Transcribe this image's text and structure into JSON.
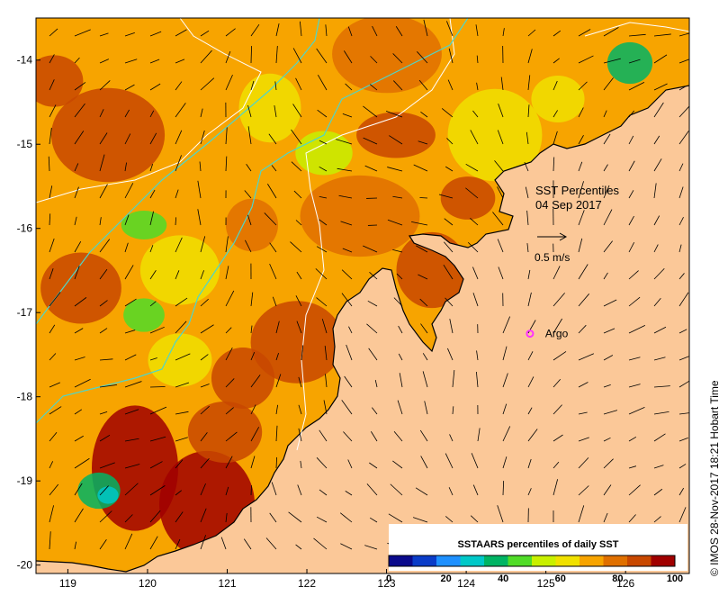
{
  "map": {
    "lon_range": [
      118.6,
      126.8
    ],
    "lat_range": [
      -20.1,
      -13.5
    ],
    "x_ticks": [
      119,
      120,
      121,
      122,
      123,
      124,
      125,
      126
    ],
    "y_ticks": [
      -14,
      -15,
      -16,
      -17,
      -18,
      -19,
      -20
    ],
    "x_tick_labels": [
      "119",
      "120",
      "121",
      "122",
      "123",
      "124",
      "125",
      "126"
    ],
    "y_tick_labels": [
      "-14",
      "-15",
      "-16",
      "-17",
      "-18",
      "-19",
      "-20"
    ],
    "colors": {
      "land": "#fbc898",
      "ocean_base": "#f7a400",
      "coastline": "#000000",
      "bathymetry_contour": "#ffffff",
      "eez_line": "#4fd6c8",
      "argo_marker": "#ff33ff"
    }
  },
  "annotations": {
    "title_line1": "SST Percentiles",
    "title_line2": "04 Sep 2017",
    "scale_label": "0.5 m/s",
    "argo_label": "Argo",
    "argo_position": {
      "lon": 124.8,
      "lat": -17.25
    }
  },
  "colorbar": {
    "title": "SSTAARS percentiles of daily SST",
    "tick_labels": [
      "0",
      "20",
      "40",
      "60",
      "80",
      "100"
    ],
    "colors": [
      "#0a0a8c",
      "#0a3cc8",
      "#1e90ff",
      "#00c8c8",
      "#00b464",
      "#50dc28",
      "#c8f000",
      "#f0e100",
      "#f7a400",
      "#e07000",
      "#c84800",
      "#a00000"
    ]
  },
  "credit": "© IMOS 28-Nov-2017 18:21 Hobart Time"
}
